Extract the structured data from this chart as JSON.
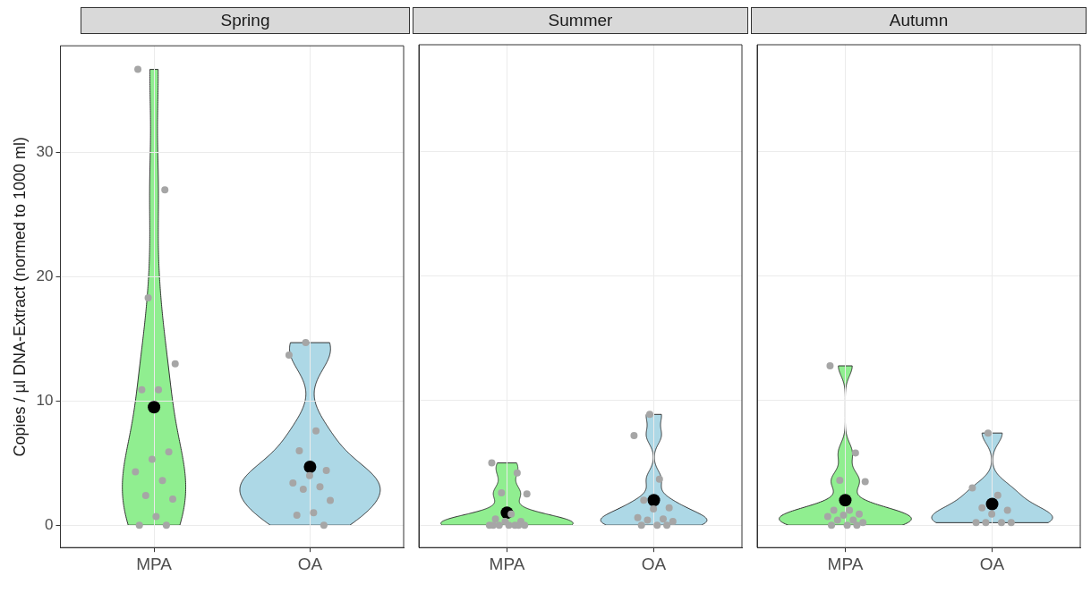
{
  "chart_data": [
    {
      "type": "scatter",
      "title": "Spring",
      "ylabel": "Copies / µl DNA-Extract (normed to 1000 ml)",
      "categories": [
        "MPA",
        "OA"
      ],
      "colors": [
        "#90ee90",
        "#add8e6"
      ],
      "ylim": [
        -1.8,
        38.6
      ],
      "yticks": [
        0,
        10,
        20,
        30
      ],
      "grid": true,
      "legend": false,
      "marker": "circle",
      "series": [
        {
          "color": "#a6a6a6",
          "x": [
            "MPA",
            "MPA",
            "MPA",
            "MPA",
            "MPA",
            "MPA",
            "MPA",
            "MPA",
            "MPA",
            "MPA",
            "MPA",
            "MPA",
            "MPA",
            "MPA",
            "MPA",
            "OA",
            "OA",
            "OA",
            "OA",
            "OA",
            "OA",
            "OA",
            "OA",
            "OA",
            "OA",
            "OA",
            "OA",
            "OA"
          ],
          "values": [
            36.7,
            27,
            18.3,
            13,
            10.9,
            10.9,
            5.9,
            5.3,
            4.3,
            3.6,
            2.4,
            2.1,
            0.7,
            0,
            0,
            14.7,
            13.7,
            7.6,
            6,
            4.4,
            4,
            3.4,
            3.1,
            2.9,
            2,
            1,
            0.8,
            0
          ]
        },
        {
          "color": "#000000",
          "x": [
            "MPA",
            "OA"
          ],
          "values": [
            9.5,
            4.7
          ]
        }
      ]
    },
    {
      "type": "scatter",
      "title": "Summer",
      "categories": [
        "MPA",
        "OA"
      ],
      "colors": [
        "#90ee90",
        "#add8e6"
      ],
      "ylim": [
        -1.8,
        38.6
      ],
      "yticks": [
        0,
        10,
        20,
        30
      ],
      "grid": true,
      "legend": false,
      "marker": "circle",
      "tick_labels": "x",
      "series": [
        {
          "color": "#a6a6a6",
          "x": [
            "MPA",
            "MPA",
            "MPA",
            "MPA",
            "MPA",
            "MPA",
            "MPA",
            "MPA",
            "MPA",
            "MPA",
            "MPA",
            "MPA",
            "MPA",
            "MPA",
            "MPA",
            "OA",
            "OA",
            "OA",
            "OA",
            "OA",
            "OA",
            "OA",
            "OA",
            "OA",
            "OA",
            "OA",
            "OA",
            "OA"
          ],
          "values": [
            5,
            4.2,
            2.6,
            2.5,
            0.9,
            0.5,
            0.3,
            0.3,
            0,
            0,
            0,
            0,
            0,
            0,
            0,
            8.9,
            7.2,
            3.7,
            2,
            1.4,
            1.3,
            0.6,
            0.5,
            0.4,
            0.3,
            0,
            0,
            0
          ]
        },
        {
          "color": "#000000",
          "x": [
            "MPA",
            "OA"
          ],
          "values": [
            1,
            2
          ]
        }
      ]
    },
    {
      "type": "scatter",
      "title": "Autumn",
      "categories": [
        "MPA",
        "OA"
      ],
      "colors": [
        "#90ee90",
        "#add8e6"
      ],
      "ylim": [
        -1.8,
        38.6
      ],
      "yticks": [
        0,
        10,
        20,
        30
      ],
      "grid": true,
      "legend": false,
      "marker": "circle",
      "tick_labels": "x",
      "series": [
        {
          "color": "#a6a6a6",
          "x": [
            "MPA",
            "MPA",
            "MPA",
            "MPA",
            "MPA",
            "MPA",
            "MPA",
            "MPA",
            "MPA",
            "MPA",
            "MPA",
            "MPA",
            "MPA",
            "MPA",
            "MPA",
            "OA",
            "OA",
            "OA",
            "OA",
            "OA",
            "OA",
            "OA",
            "OA",
            "OA",
            "OA"
          ],
          "values": [
            12.8,
            5.8,
            3.6,
            3.5,
            1.2,
            1.2,
            0.9,
            0.8,
            0.7,
            0.4,
            0.4,
            0.2,
            0,
            0,
            0,
            7.4,
            3,
            2.4,
            1.4,
            1.2,
            0.9,
            0.2,
            0.2,
            0.2,
            0.2
          ]
        },
        {
          "color": "#000000",
          "x": [
            "MPA",
            "OA"
          ],
          "values": [
            2,
            1.7
          ]
        }
      ]
    }
  ]
}
